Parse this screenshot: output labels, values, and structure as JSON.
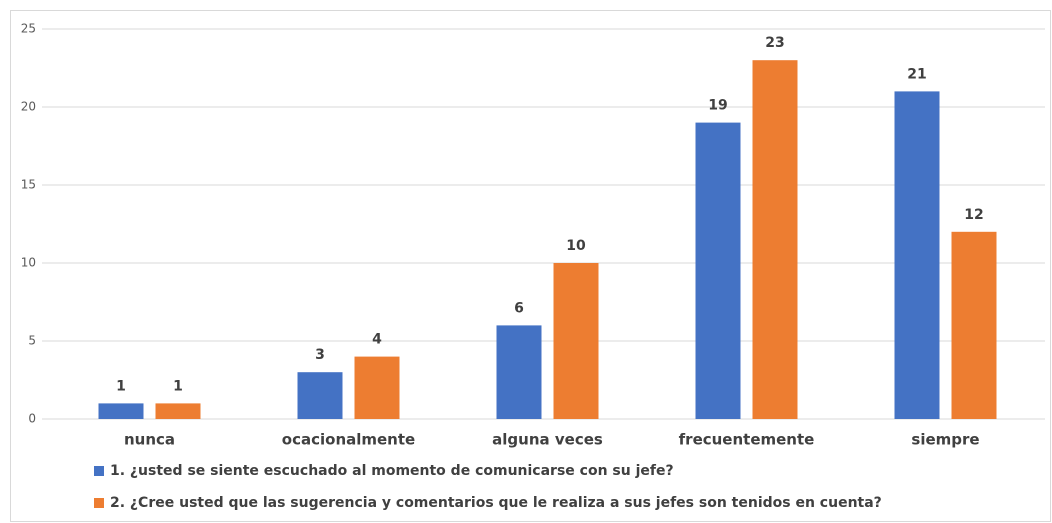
{
  "chart_data": {
    "type": "bar",
    "categories": [
      "nunca",
      "ocacionalmente",
      "alguna veces",
      "frecuentemente",
      "siempre"
    ],
    "series": [
      {
        "name": "1. ¿usted se siente escuchado al momento de comunicarse con su jefe?",
        "color": "#4472c4",
        "values": [
          1,
          3,
          6,
          19,
          21
        ]
      },
      {
        "name": "2. ¿Cree usted que las sugerencia y comentarios que le realiza a sus jefes son tenidos en cuenta?",
        "color": "#ed7d31",
        "values": [
          1,
          4,
          10,
          23,
          12
        ]
      }
    ],
    "ylim": [
      0,
      25
    ],
    "yticks": [
      0,
      5,
      10,
      15,
      20,
      25
    ],
    "grid": true,
    "legend": "bottom"
  }
}
